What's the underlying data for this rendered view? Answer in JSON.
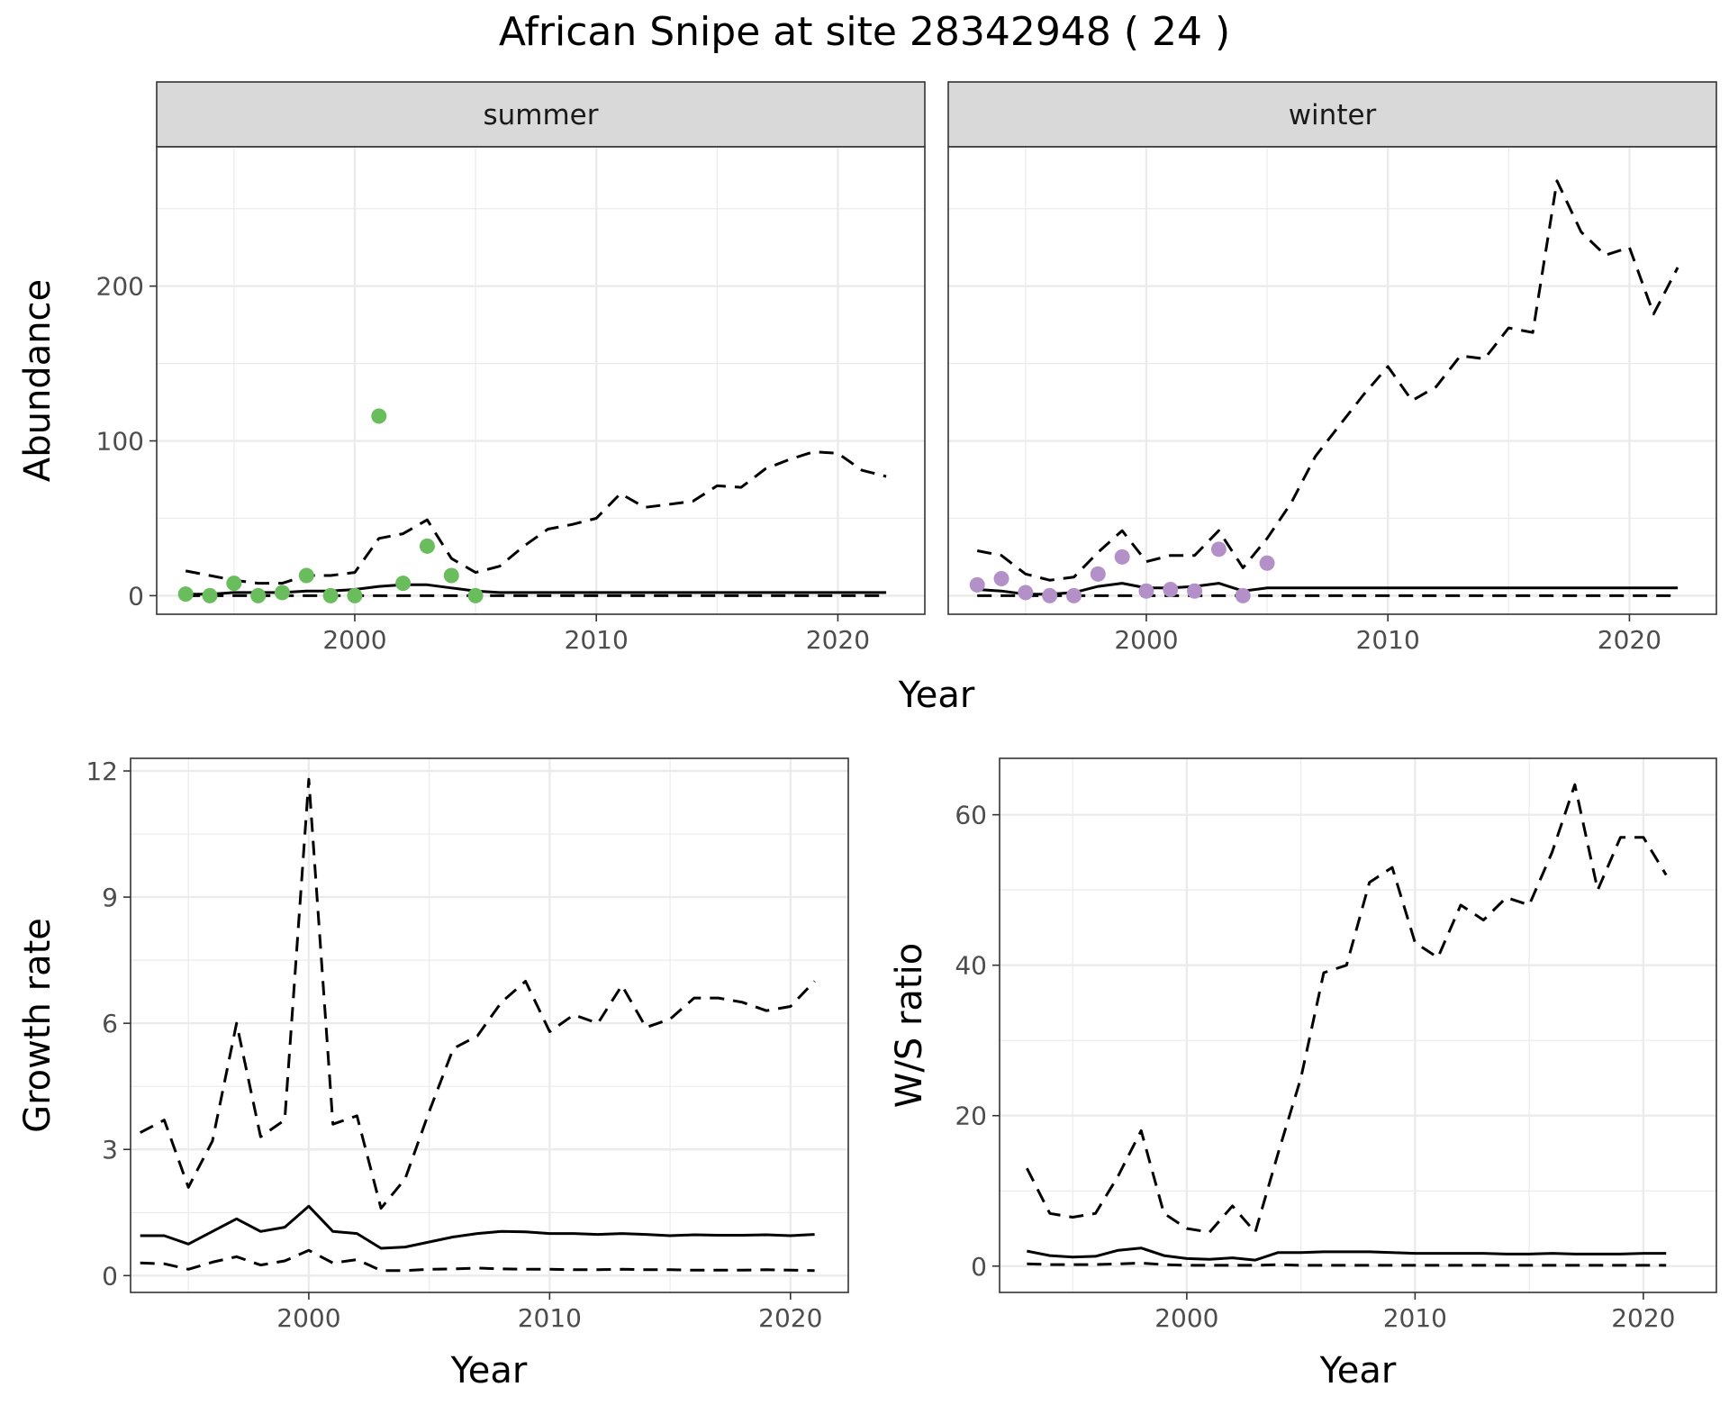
{
  "title": "African Snipe at site 28342948 ( 24 )",
  "colors": {
    "summer_points": "#6abd5d",
    "winter_points": "#b490c9",
    "lines": "#000000"
  },
  "chart_data": [
    {
      "id": "abundance_summer",
      "type": "line",
      "facet_label": "summer",
      "ylabel": "Abundance",
      "xlabel": "Year",
      "xlim": [
        1991.8,
        2023.6
      ],
      "ylim": [
        -12,
        290
      ],
      "xticks": [
        2000,
        2010,
        2020
      ],
      "yticks": [
        0,
        100,
        200
      ],
      "x": [
        1993,
        1994,
        1995,
        1996,
        1997,
        1998,
        1999,
        2000,
        2001,
        2002,
        2003,
        2004,
        2005,
        2006,
        2007,
        2008,
        2009,
        2010,
        2011,
        2012,
        2013,
        2014,
        2015,
        2016,
        2017,
        2018,
        2019,
        2020,
        2021,
        2022
      ],
      "series": [
        {
          "style": "solid",
          "values": [
            1,
            1,
            2,
            2,
            2,
            3,
            3,
            4,
            6,
            7,
            7,
            5,
            3,
            2,
            2,
            2,
            2,
            2,
            2,
            2,
            2,
            2,
            2,
            2,
            2,
            2,
            2,
            2,
            2,
            2
          ]
        },
        {
          "style": "dashed",
          "values": [
            16,
            13,
            10,
            8,
            8,
            13,
            13,
            15,
            37,
            40,
            49,
            24,
            15,
            19,
            32,
            43,
            46,
            50,
            66,
            57,
            59,
            61,
            71,
            70,
            82,
            88,
            93,
            92,
            81,
            77
          ]
        },
        {
          "style": "dashed",
          "values": [
            0,
            0,
            0,
            0,
            0,
            0,
            0,
            0,
            0,
            0,
            0,
            0,
            0,
            0,
            0,
            0,
            0,
            0,
            0,
            0,
            0,
            0,
            0,
            0,
            0,
            0,
            0,
            0,
            0,
            0
          ]
        }
      ],
      "points": {
        "x": [
          1993,
          1994,
          1995,
          1996,
          1997,
          1998,
          1999,
          2000,
          2001,
          2002,
          2003,
          2004,
          2005
        ],
        "y": [
          1,
          0,
          8,
          0,
          2,
          13,
          0,
          0,
          116,
          8,
          32,
          13,
          0
        ]
      }
    },
    {
      "id": "abundance_winter",
      "type": "line",
      "facet_label": "winter",
      "xlabel": "Year",
      "xlim": [
        1991.8,
        2023.6
      ],
      "ylim": [
        -12,
        290
      ],
      "xticks": [
        2000,
        2010,
        2020
      ],
      "x": [
        1993,
        1994,
        1995,
        1996,
        1997,
        1998,
        1999,
        2000,
        2001,
        2002,
        2003,
        2004,
        2005,
        2006,
        2007,
        2008,
        2009,
        2010,
        2011,
        2012,
        2013,
        2014,
        2015,
        2016,
        2017,
        2018,
        2019,
        2020,
        2021,
        2022
      ],
      "series": [
        {
          "style": "solid",
          "values": [
            4,
            3,
            1,
            1,
            2,
            6,
            8,
            5,
            5,
            6,
            8,
            3,
            5,
            5,
            5,
            5,
            5,
            5,
            5,
            5,
            5,
            5,
            5,
            5,
            5,
            5,
            5,
            5,
            5,
            5
          ]
        },
        {
          "style": "dashed",
          "values": [
            29,
            26,
            14,
            10,
            12,
            28,
            42,
            22,
            26,
            26,
            42,
            18,
            37,
            60,
            90,
            110,
            130,
            148,
            126,
            135,
            155,
            153,
            173,
            170,
            268,
            235,
            220,
            225,
            182,
            212
          ]
        },
        {
          "style": "dashed",
          "values": [
            0,
            0,
            0,
            0,
            0,
            0,
            0,
            0,
            0,
            0,
            0,
            0,
            0,
            0,
            0,
            0,
            0,
            0,
            0,
            0,
            0,
            0,
            0,
            0,
            0,
            0,
            0,
            0,
            0,
            0
          ]
        }
      ],
      "points": {
        "x": [
          1993,
          1994,
          1995,
          1996,
          1997,
          1998,
          1999,
          2000,
          2001,
          2002,
          2003,
          2004,
          2005
        ],
        "y": [
          7,
          11,
          2,
          0,
          0,
          14,
          25,
          3,
          4,
          3,
          30,
          0,
          21
        ]
      }
    },
    {
      "id": "growth_rate",
      "type": "line",
      "ylabel": "Growth rate",
      "xlabel": "Year",
      "xlim": [
        1992.6,
        2022.4
      ],
      "ylim": [
        -0.4,
        12.3
      ],
      "xticks": [
        2000,
        2010,
        2020
      ],
      "yticks": [
        0,
        3,
        6,
        9,
        12
      ],
      "x": [
        1993,
        1994,
        1995,
        1996,
        1997,
        1998,
        1999,
        2000,
        2001,
        2002,
        2003,
        2004,
        2005,
        2006,
        2007,
        2008,
        2009,
        2010,
        2011,
        2012,
        2013,
        2014,
        2015,
        2016,
        2017,
        2018,
        2019,
        2020,
        2021
      ],
      "series": [
        {
          "style": "solid",
          "values": [
            0.95,
            0.95,
            0.75,
            1.05,
            1.35,
            1.05,
            1.15,
            1.65,
            1.05,
            1.0,
            0.65,
            0.68,
            0.8,
            0.92,
            1.0,
            1.05,
            1.04,
            1.0,
            1.0,
            0.98,
            1.0,
            0.98,
            0.95,
            0.97,
            0.96,
            0.96,
            0.97,
            0.95,
            0.98
          ]
        },
        {
          "style": "dashed",
          "values": [
            3.4,
            3.7,
            2.1,
            3.2,
            6.0,
            3.3,
            3.7,
            11.8,
            3.6,
            3.8,
            1.6,
            2.3,
            3.9,
            5.4,
            5.7,
            6.5,
            7.0,
            5.8,
            6.2,
            6.0,
            6.9,
            5.9,
            6.1,
            6.6,
            6.6,
            6.5,
            6.3,
            6.4,
            7.0
          ]
        },
        {
          "style": "dashed",
          "values": [
            0.3,
            0.28,
            0.15,
            0.32,
            0.45,
            0.25,
            0.35,
            0.6,
            0.3,
            0.38,
            0.12,
            0.12,
            0.15,
            0.16,
            0.18,
            0.16,
            0.15,
            0.15,
            0.14,
            0.14,
            0.15,
            0.14,
            0.14,
            0.13,
            0.13,
            0.13,
            0.14,
            0.13,
            0.12
          ]
        }
      ]
    },
    {
      "id": "ws_ratio",
      "type": "line",
      "ylabel": "W/S ratio",
      "xlabel": "Year",
      "xlim": [
        1991.8,
        2023.2
      ],
      "ylim": [
        -3.5,
        67.5
      ],
      "xticks": [
        2000,
        2010,
        2020
      ],
      "yticks": [
        0,
        20,
        40,
        60
      ],
      "x": [
        1993,
        1994,
        1995,
        1996,
        1997,
        1998,
        1999,
        2000,
        2001,
        2002,
        2003,
        2004,
        2005,
        2006,
        2007,
        2008,
        2009,
        2010,
        2011,
        2012,
        2013,
        2014,
        2015,
        2016,
        2017,
        2018,
        2019,
        2020,
        2021
      ],
      "series": [
        {
          "style": "solid",
          "values": [
            2.0,
            1.4,
            1.2,
            1.3,
            2.1,
            2.4,
            1.4,
            1.0,
            0.9,
            1.1,
            0.8,
            1.8,
            1.8,
            1.9,
            1.9,
            1.9,
            1.8,
            1.7,
            1.7,
            1.7,
            1.7,
            1.6,
            1.6,
            1.7,
            1.6,
            1.6,
            1.6,
            1.7,
            1.7
          ]
        },
        {
          "style": "dashed",
          "values": [
            13,
            7,
            6.5,
            7,
            12,
            18,
            7,
            5,
            4.5,
            8,
            4.5,
            15,
            25,
            39,
            40,
            51,
            53,
            43,
            41,
            48,
            46,
            49,
            48,
            55,
            64,
            50,
            57,
            57,
            52
          ]
        },
        {
          "style": "dashed",
          "values": [
            0.3,
            0.2,
            0.2,
            0.2,
            0.3,
            0.4,
            0.2,
            0.1,
            0.1,
            0.1,
            0.1,
            0.2,
            0.1,
            0.1,
            0.1,
            0.1,
            0.1,
            0.1,
            0.1,
            0.1,
            0.1,
            0.1,
            0.1,
            0.1,
            0.1,
            0.1,
            0.1,
            0.1,
            0.1
          ]
        }
      ]
    }
  ]
}
